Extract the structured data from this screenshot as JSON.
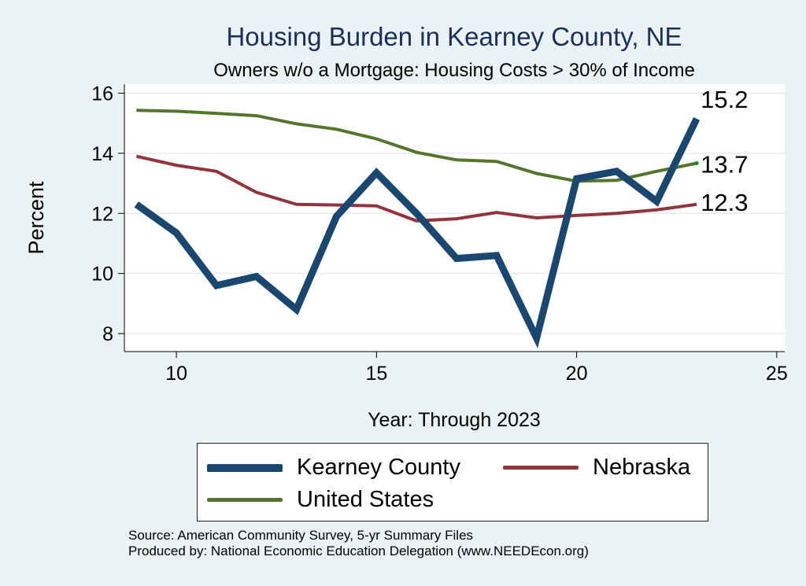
{
  "chart_data": {
    "type": "line",
    "title": "Housing Burden in Kearney County, NE",
    "subtitle": "Owners w/o a Mortgage: Housing Costs > 30% of Income",
    "xlabel": "Year: Through 2023",
    "ylabel": "Percent",
    "xlim": [
      8.7,
      25.2
    ],
    "ylim": [
      7.4,
      16.3
    ],
    "xticks": [
      10,
      15,
      20,
      25
    ],
    "yticks": [
      8,
      10,
      12,
      14,
      16
    ],
    "grid": true,
    "legend_position": "bottom",
    "x": [
      9,
      10,
      11,
      12,
      13,
      14,
      15,
      16,
      17,
      18,
      19,
      20,
      21,
      22,
      23
    ],
    "series": [
      {
        "name": "Kearney County",
        "color": "#1a476f",
        "width": 9,
        "values": [
          12.3,
          11.35,
          9.6,
          9.9,
          8.8,
          11.9,
          13.35,
          12.0,
          10.5,
          10.6,
          7.85,
          13.15,
          13.4,
          12.4,
          15.15
        ],
        "end_label": "15.2"
      },
      {
        "name": "Nebraska",
        "color": "#90353b",
        "width": 4,
        "values": [
          13.9,
          13.6,
          13.4,
          12.7,
          12.3,
          12.28,
          12.25,
          11.75,
          11.82,
          12.03,
          11.85,
          11.93,
          12.0,
          12.12,
          12.3
        ],
        "end_label": "12.3"
      },
      {
        "name": "United States",
        "color": "#55752f",
        "width": 4,
        "values": [
          15.43,
          15.4,
          15.33,
          15.25,
          14.98,
          14.8,
          14.48,
          14.03,
          13.78,
          13.73,
          13.33,
          13.07,
          13.1,
          13.4,
          13.67
        ],
        "end_label": "13.7"
      }
    ]
  },
  "legend": {
    "items": [
      "Kearney County",
      "Nebraska",
      "United States"
    ]
  },
  "source": {
    "line1": "Source: American Community Survey, 5-yr Summary Files",
    "line2": "Produced by: National Economic Education Delegation (www.NEEDEcon.org)"
  }
}
